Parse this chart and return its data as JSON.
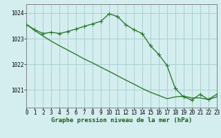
{
  "line1_x": [
    0,
    1,
    2,
    3,
    4,
    5,
    6,
    7,
    8,
    9,
    10,
    11,
    12,
    13,
    14,
    15,
    16,
    17,
    18,
    19,
    20,
    21,
    22,
    23
  ],
  "line1_y": [
    1023.55,
    1023.35,
    1023.2,
    1023.25,
    1023.2,
    1023.28,
    1023.38,
    1023.48,
    1023.58,
    1023.68,
    1023.97,
    1023.87,
    1023.55,
    1023.35,
    1023.2,
    1022.72,
    1022.38,
    1021.95,
    1021.05,
    1020.72,
    1020.6,
    1020.82,
    1020.62,
    1020.82
  ],
  "line2_x": [
    0,
    1,
    2,
    3,
    4,
    5,
    6,
    7,
    8,
    9,
    10,
    11,
    12,
    13,
    14,
    15,
    16,
    17,
    18,
    19,
    20,
    21,
    22,
    23
  ],
  "line2_y": [
    1023.55,
    1023.32,
    1023.1,
    1022.9,
    1022.72,
    1022.55,
    1022.38,
    1022.2,
    1022.05,
    1021.88,
    1021.72,
    1021.55,
    1021.38,
    1021.22,
    1021.05,
    1020.9,
    1020.78,
    1020.65,
    1020.72,
    1020.75,
    1020.68,
    1020.68,
    1020.62,
    1020.72
  ],
  "line_color": "#2d7a2d",
  "bg_color": "#d4eef0",
  "grid_color": "#aacfcf",
  "axis_color": "#808080",
  "ylabel_ticks": [
    1021,
    1022,
    1023,
    1024
  ],
  "xlabel_ticks": [
    0,
    1,
    2,
    3,
    4,
    5,
    6,
    7,
    8,
    9,
    10,
    11,
    12,
    13,
    14,
    15,
    16,
    17,
    18,
    19,
    20,
    21,
    22,
    23
  ],
  "ylim": [
    1020.3,
    1024.35
  ],
  "xlim": [
    0,
    23
  ],
  "xlabel": "Graphe pression niveau de la mer (hPa)",
  "marker": "+",
  "marker_size": 4,
  "line_width": 1.0,
  "tick_fontsize": 5.5,
  "xlabel_fontsize": 6.5
}
